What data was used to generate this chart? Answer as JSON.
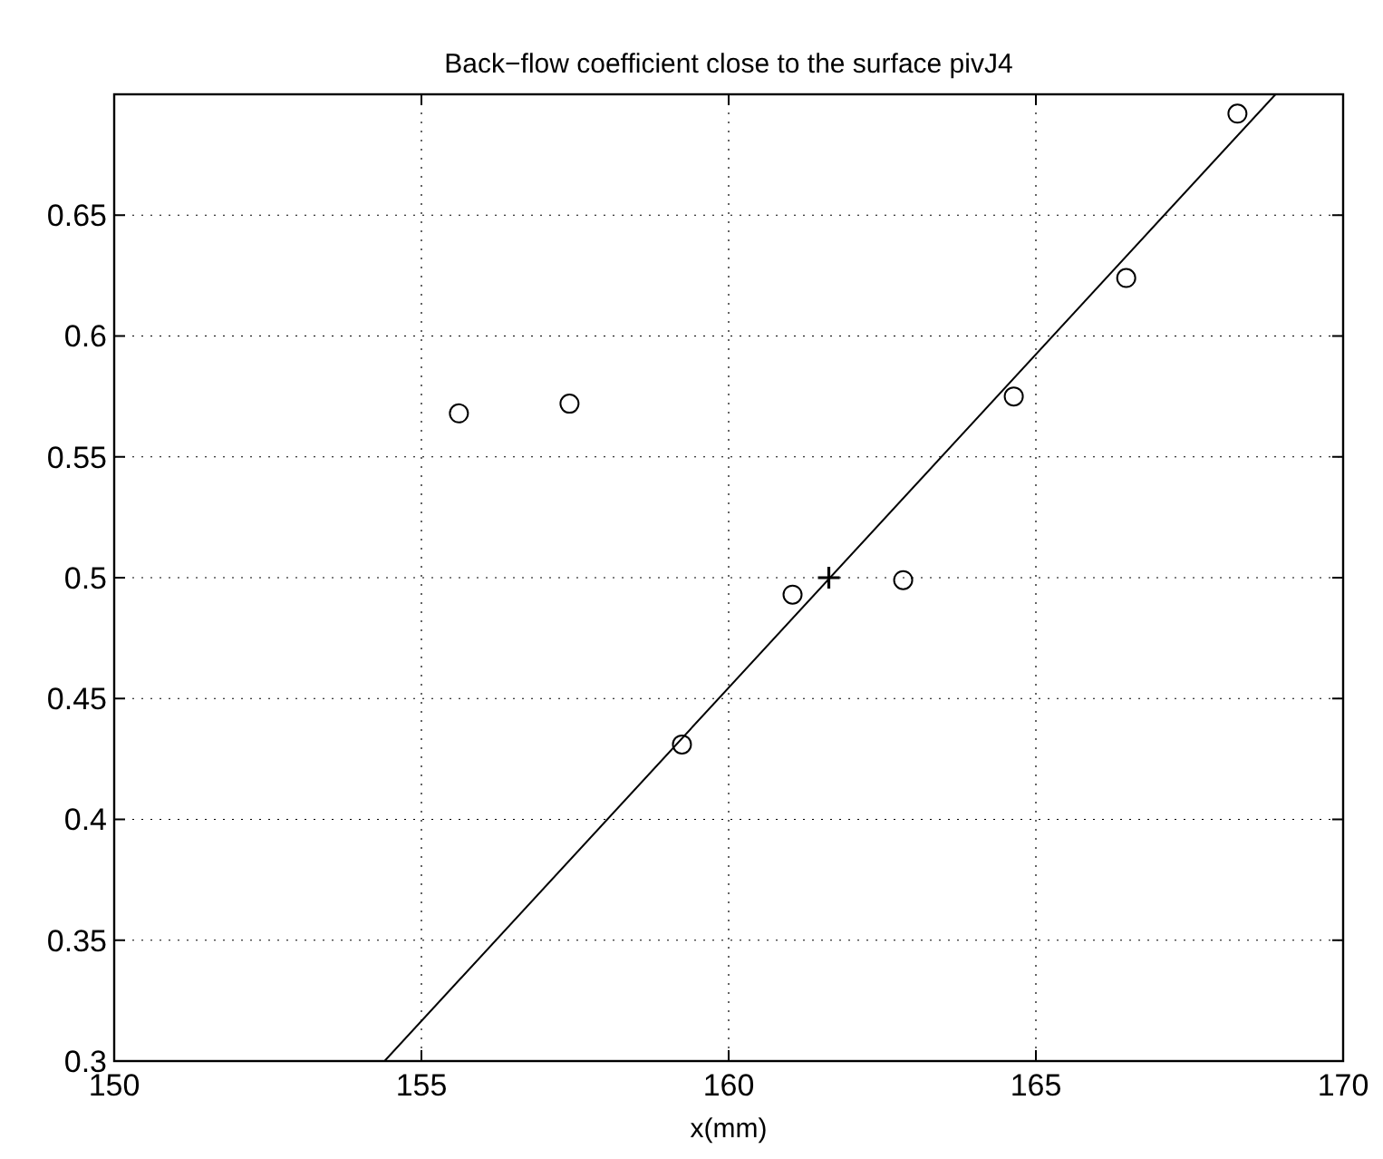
{
  "chart_data": {
    "type": "scatter",
    "title": "Back−flow coefficient close to the surface pivJ4",
    "xlabel": "x(mm)",
    "xlim": [
      150,
      170
    ],
    "xticks": [
      150,
      155,
      160,
      165,
      170
    ],
    "ylim": [
      0.3,
      0.7
    ],
    "yticks": [
      0.3,
      0.35,
      0.4,
      0.45,
      0.5,
      0.55,
      0.6,
      0.65
    ],
    "grid": true,
    "series": [
      {
        "marker": "circle",
        "color": "#000000",
        "x": [
          155.61,
          157.41,
          159.24,
          161.04,
          162.84,
          164.64,
          166.47,
          168.28
        ],
        "values": [
          0.568,
          0.572,
          0.431,
          0.493,
          0.499,
          0.575,
          0.624,
          0.692
        ]
      },
      {
        "type": "line",
        "marker": "none",
        "line_style": "solid",
        "color": "#000000",
        "x": [
          154.4,
          168.9
        ],
        "values": [
          0.3,
          0.7
        ]
      },
      {
        "marker": "cross",
        "color": "#000000",
        "x": [
          161.63
        ],
        "values": [
          0.5
        ]
      }
    ]
  }
}
